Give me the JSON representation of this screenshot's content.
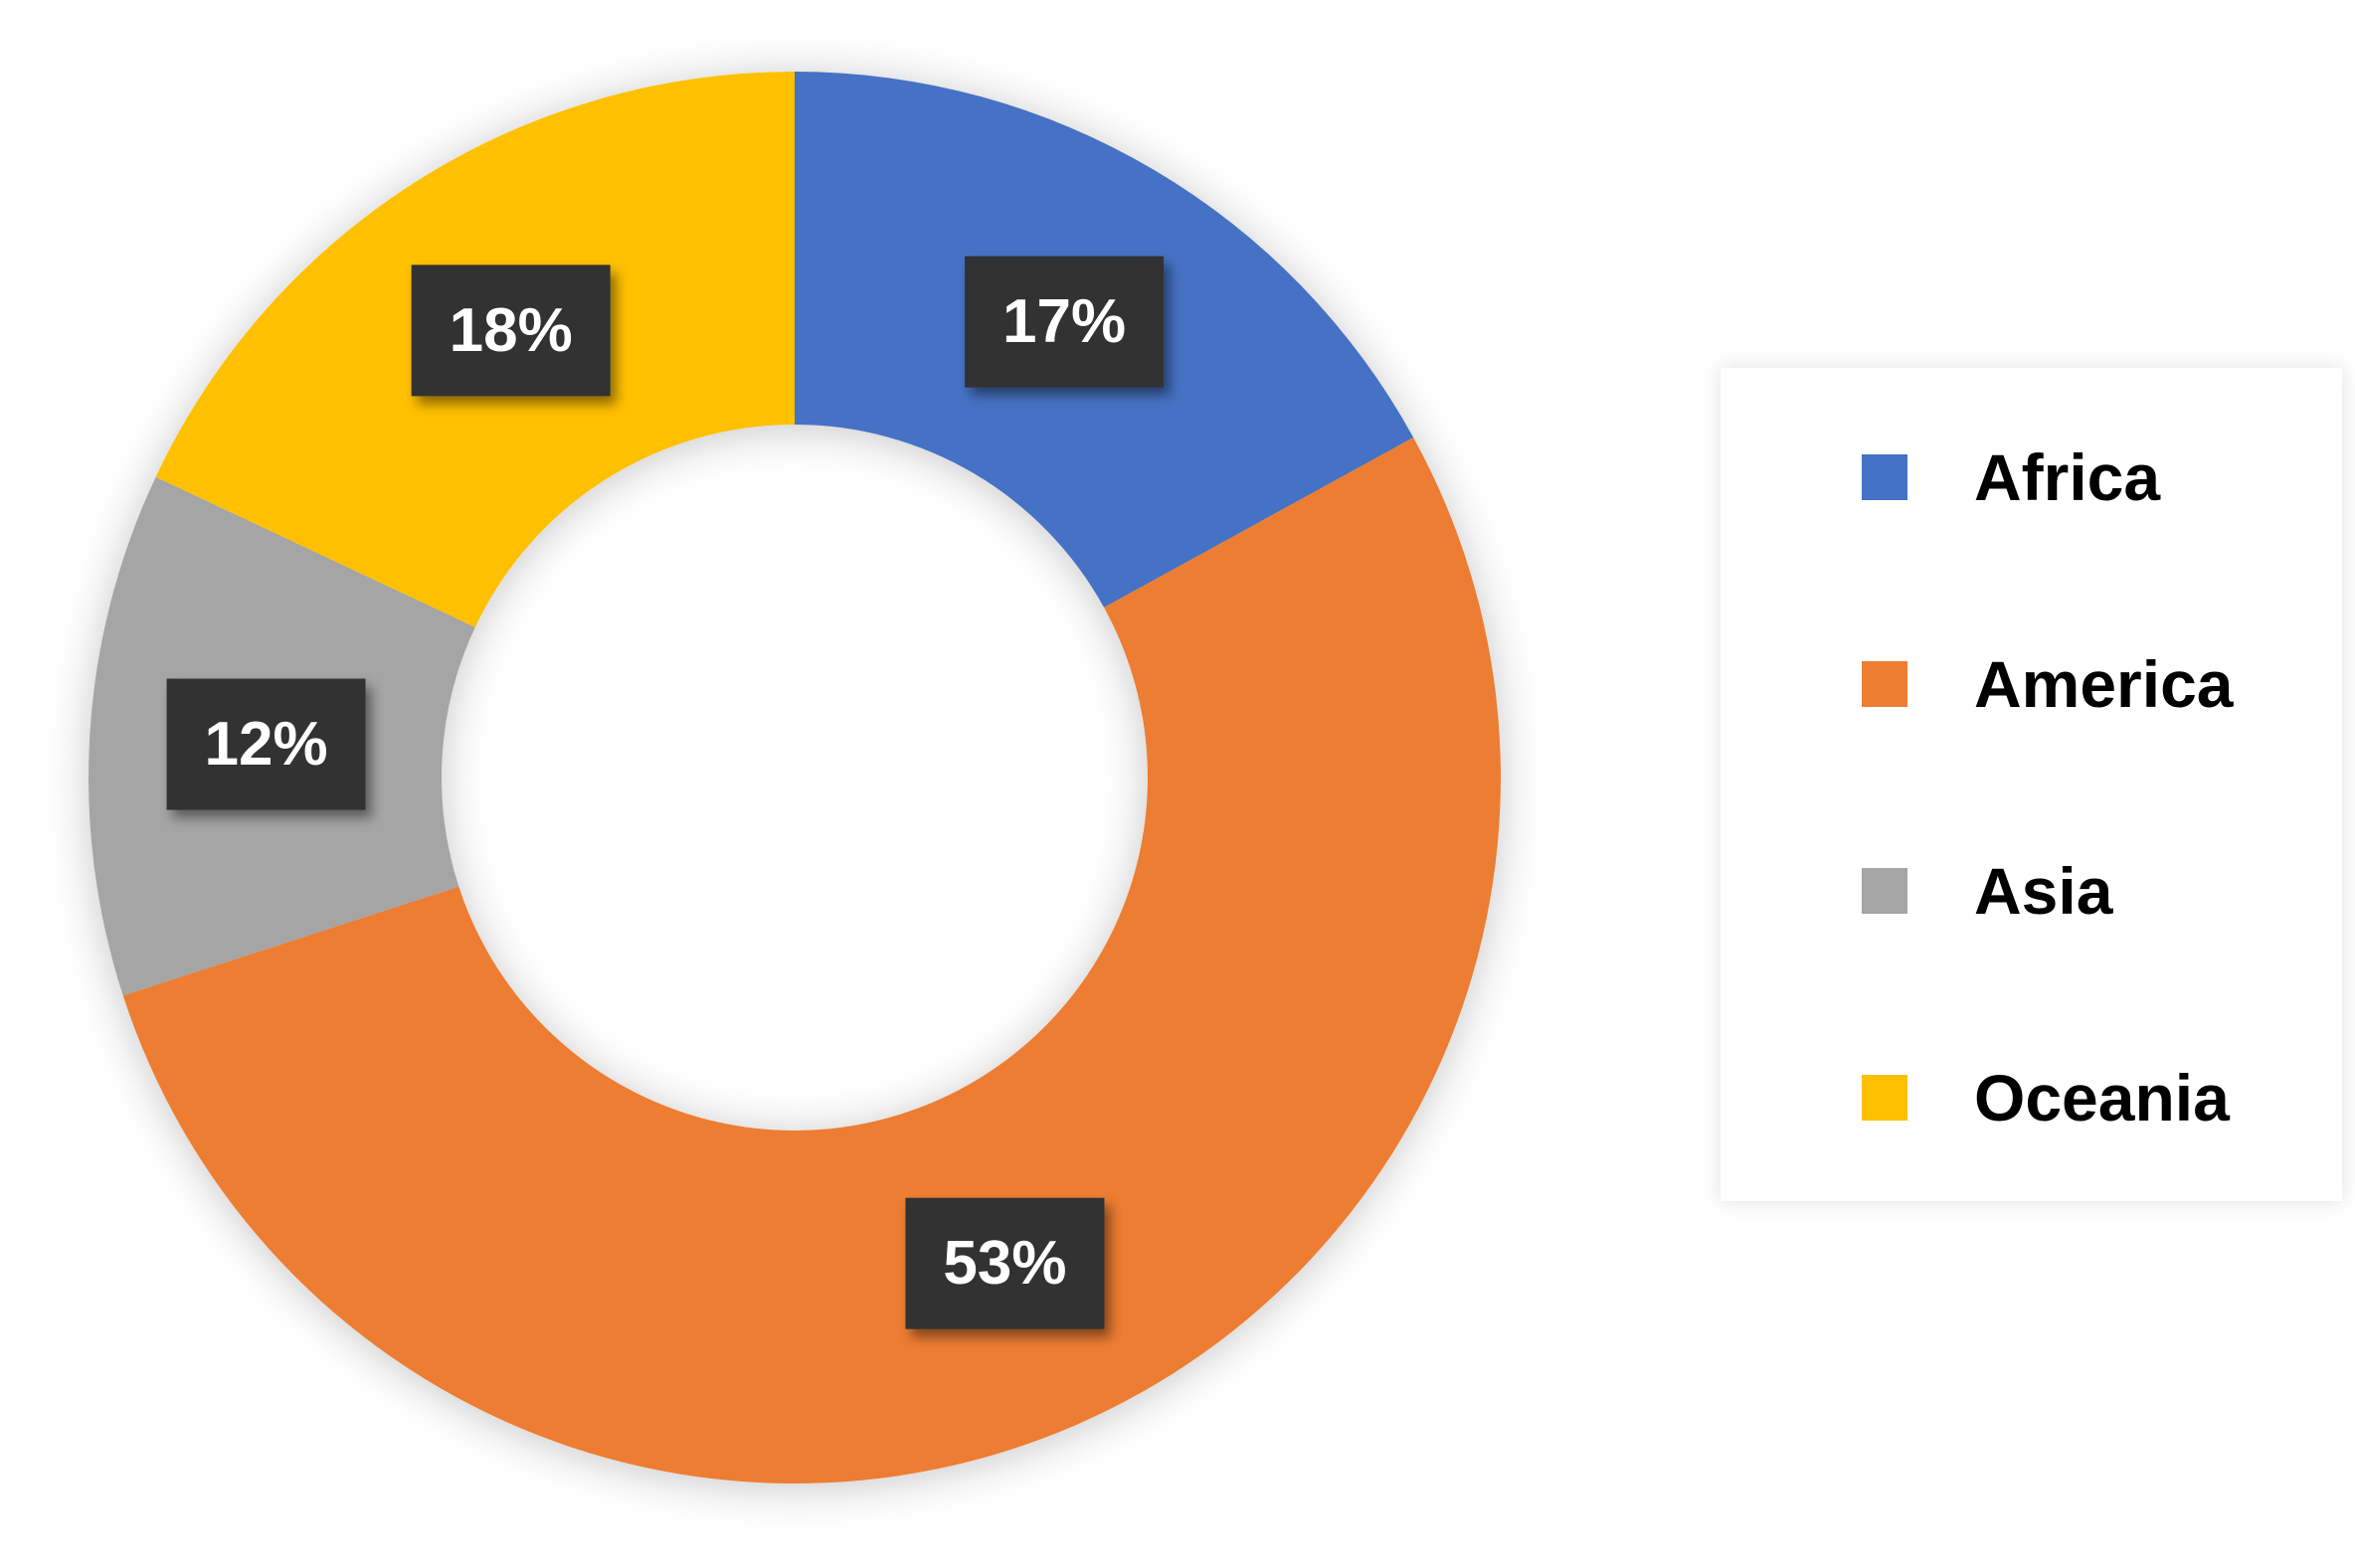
{
  "chart_data": {
    "type": "donut",
    "categories": [
      "Africa",
      "America",
      "Asia",
      "Oceania"
    ],
    "values": [
      17,
      53,
      12,
      18
    ],
    "value_labels": [
      "17%",
      "53%",
      "12%",
      "18%"
    ],
    "colors": [
      "#4472c4",
      "#ed7d31",
      "#a5a5a5",
      "#ffc000"
    ],
    "legend": "right"
  }
}
